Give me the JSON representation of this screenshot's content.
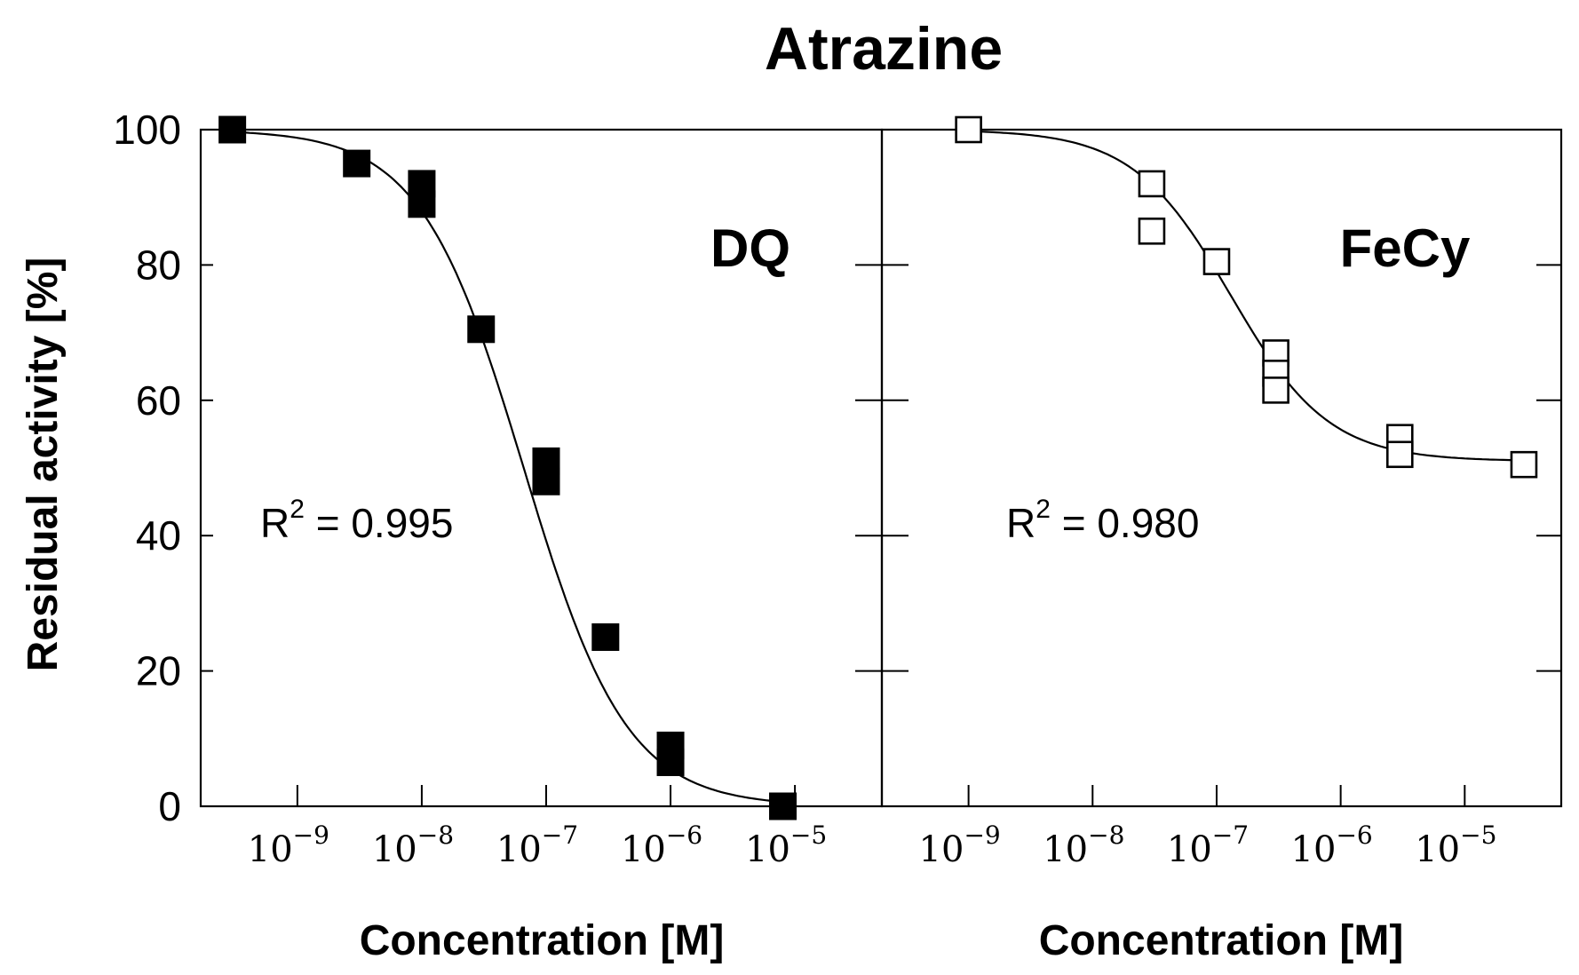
{
  "chart_data": {
    "type": "scatter",
    "title": "Atrazine",
    "ylabel": "Residual activity [%]",
    "ylim": [
      0,
      100
    ],
    "yticks": [
      "0",
      "20",
      "40",
      "60",
      "80",
      "100"
    ],
    "x_scale": "log",
    "grid": false,
    "panels": [
      {
        "label": "DQ",
        "xlabel": "Concentration [M]",
        "xticks": [
          {
            "base": "10",
            "exp": "−9"
          },
          {
            "base": "10",
            "exp": "−8"
          },
          {
            "base": "10",
            "exp": "−7"
          },
          {
            "base": "10",
            "exp": "−6"
          },
          {
            "base": "10",
            "exp": "−5"
          }
        ],
        "xlim": [
          1.67e-10,
          5e-05
        ],
        "r2_prefix": "R",
        "r2_sup": "2",
        "r2_value": " = 0.995",
        "marker": "filled-square",
        "x": [
          3e-10,
          3e-09,
          1e-08,
          1e-08,
          3e-08,
          1e-07,
          1e-07,
          3e-07,
          1e-06,
          1e-06,
          8e-06
        ],
        "y": [
          100,
          95,
          92,
          89,
          70.5,
          51,
          48,
          25,
          9,
          6.5,
          0
        ],
        "fit": {
          "top": 100,
          "bottom": 0,
          "ic50": 6.6e-08,
          "hill": 1.05
        }
      },
      {
        "label": "FeCy",
        "xlabel": "Concentration [M]",
        "xticks": [
          {
            "base": "10",
            "exp": "−9"
          },
          {
            "base": "10",
            "exp": "−8"
          },
          {
            "base": "10",
            "exp": "−7"
          },
          {
            "base": "10",
            "exp": "−6"
          },
          {
            "base": "10",
            "exp": "−5"
          }
        ],
        "xlim": [
          2e-10,
          6e-05
        ],
        "r2_prefix": "R",
        "r2_sup": "2",
        "r2_value": " = 0.980",
        "marker": "open-square",
        "x": [
          1e-09,
          3e-08,
          3e-08,
          1e-07,
          3e-07,
          3e-07,
          3e-07,
          3e-06,
          3e-06,
          3e-05
        ],
        "y": [
          100,
          92,
          85,
          80.5,
          67,
          64,
          61.5,
          54.5,
          52,
          50.5
        ],
        "fit": {
          "top": 100,
          "bottom": 51,
          "ic50": 1.3e-07,
          "hill": 1.1
        }
      }
    ]
  }
}
